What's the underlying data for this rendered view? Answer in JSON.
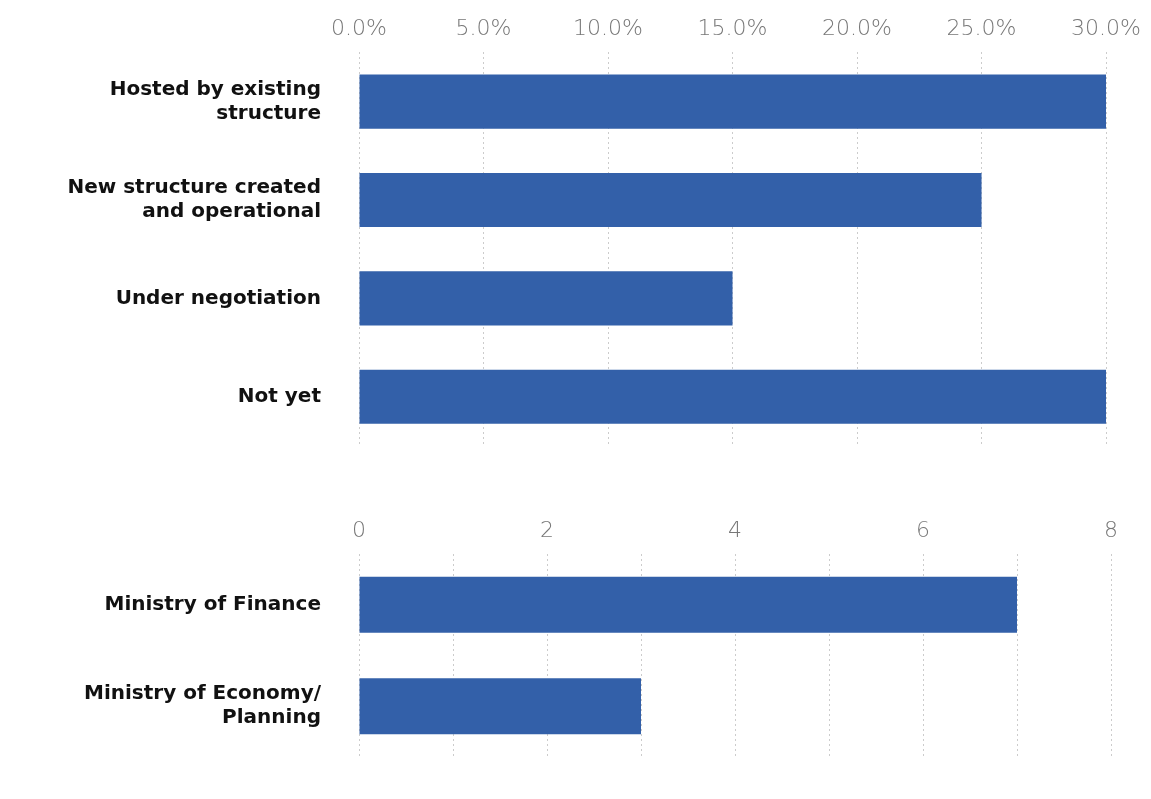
{
  "chart_data": [
    {
      "type": "bar",
      "orientation": "horizontal",
      "categories": [
        "Hosted by existing structure",
        "New structure created and operational",
        "Under negotiation",
        "Not yet"
      ],
      "values": [
        30,
        25,
        15,
        30
      ],
      "color": "#3360a9",
      "xlim": [
        0,
        30
      ],
      "xticks": [
        {
          "value": 0,
          "label": "0.0%"
        },
        {
          "value": 5,
          "label": "5.0%"
        },
        {
          "value": 10,
          "label": "10.0%"
        },
        {
          "value": 15,
          "label": "15.0%"
        },
        {
          "value": 20,
          "label": "20.0%"
        },
        {
          "value": 25,
          "label": "25.0%"
        },
        {
          "value": 30,
          "label": "30.0%"
        }
      ],
      "grid": "x",
      "legend": false
    },
    {
      "type": "bar",
      "orientation": "horizontal",
      "categories": [
        "Ministry of Finance",
        "Ministry of Economy/Planning"
      ],
      "values": [
        7,
        3
      ],
      "color": "#3360a9",
      "xlim": [
        0,
        8
      ],
      "xticks": [
        0,
        {
          "value": 1,
          "label": null
        },
        2,
        {
          "value": 3,
          "label": null
        },
        4,
        {
          "value": 5,
          "label": null
        },
        6,
        {
          "value": 7,
          "label": null
        },
        8
      ],
      "grid": "x",
      "legend": false
    }
  ]
}
